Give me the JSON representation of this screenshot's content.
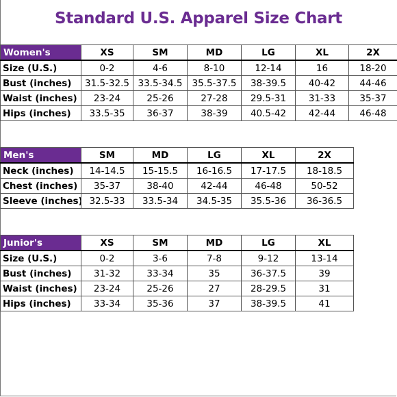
{
  "title": "Standard U.S. Apparel Size Chart",
  "accent_color": "#6a2c91",
  "women": {
    "group": "Women's",
    "sizes": [
      "XS",
      "SM",
      "MD",
      "LG",
      "XL",
      "2X"
    ],
    "rows": [
      {
        "label": "Size (U.S.)",
        "values": [
          "0-2",
          "4-6",
          "8-10",
          "12-14",
          "16",
          "18-20"
        ]
      },
      {
        "label": "Bust (inches)",
        "values": [
          "31.5-32.5",
          "33.5-34.5",
          "35.5-37.5",
          "38-39.5",
          "40-42",
          "44-46"
        ]
      },
      {
        "label": "Waist (inches)",
        "values": [
          "23-24",
          "25-26",
          "27-28",
          "29.5-31",
          "31-33",
          "35-37"
        ]
      },
      {
        "label": "Hips (inches)",
        "values": [
          "33.5-35",
          "36-37",
          "38-39",
          "40.5-42",
          "42-44",
          "46-48"
        ]
      }
    ]
  },
  "men": {
    "group": "Men's",
    "sizes": [
      "SM",
      "MD",
      "LG",
      "XL",
      "2X"
    ],
    "rows": [
      {
        "label": "Neck (inches)",
        "values": [
          "14-14.5",
          "15-15.5",
          "16-16.5",
          "17-17.5",
          "18-18.5"
        ]
      },
      {
        "label": "Chest (inches)",
        "values": [
          "35-37",
          "38-40",
          "42-44",
          "46-48",
          "50-52"
        ]
      },
      {
        "label": "Sleeve (inches)",
        "values": [
          "32.5-33",
          "33.5-34",
          "34.5-35",
          "35.5-36",
          "36-36.5"
        ]
      }
    ]
  },
  "junior": {
    "group": "Junior's",
    "sizes": [
      "XS",
      "SM",
      "MD",
      "LG",
      "XL"
    ],
    "rows": [
      {
        "label": "Size (U.S.)",
        "values": [
          "0-2",
          "3-6",
          "7-8",
          "9-12",
          "13-14"
        ]
      },
      {
        "label": "Bust (inches)",
        "values": [
          "31-32",
          "33-34",
          "35",
          "36-37.5",
          "39"
        ]
      },
      {
        "label": "Waist (inches)",
        "values": [
          "23-24",
          "25-26",
          "27",
          "28-29.5",
          "31"
        ]
      },
      {
        "label": "Hips (inches)",
        "values": [
          "33-34",
          "35-36",
          "37",
          "38-39.5",
          "41"
        ]
      }
    ]
  }
}
